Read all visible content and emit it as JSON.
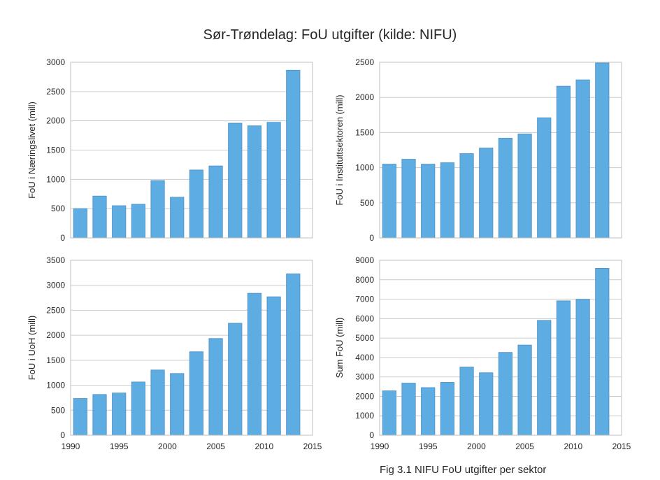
{
  "title": "Sør-Trøndelag: FoU utgifter (kilde: NIFU)",
  "caption": "Fig 3.1 NIFU FoU utgifter per sektor",
  "bar_color": "#5dade2",
  "chart_data": [
    {
      "type": "bar",
      "ylabel": "FoU i Næringslivet (mill)",
      "xlim": [
        1990,
        2015
      ],
      "ylim": [
        0,
        3000
      ],
      "yticks": [
        0,
        500,
        1000,
        1500,
        2000,
        2500,
        3000
      ],
      "xticks": [],
      "x": [
        1991,
        1993,
        1995,
        1997,
        1999,
        2001,
        2003,
        2005,
        2007,
        2009,
        2011,
        2013
      ],
      "values": [
        500,
        715,
        550,
        575,
        980,
        695,
        1160,
        1230,
        1960,
        1915,
        1975,
        2865
      ],
      "grid": true
    },
    {
      "type": "bar",
      "ylabel": "FoU i Instituttsektoren (mill)",
      "xlim": [
        1990,
        2015
      ],
      "ylim": [
        0,
        2500
      ],
      "yticks": [
        0,
        500,
        1000,
        1500,
        2000,
        2500
      ],
      "xticks": [],
      "x": [
        1991,
        1993,
        1995,
        1997,
        1999,
        2001,
        2003,
        2005,
        2007,
        2009,
        2011,
        2013
      ],
      "values": [
        1050,
        1120,
        1050,
        1070,
        1200,
        1280,
        1420,
        1480,
        1710,
        2160,
        2250,
        2490
      ],
      "grid": true
    },
    {
      "type": "bar",
      "ylabel": "FoU i UoH (mill)",
      "xlim": [
        1990,
        2015
      ],
      "ylim": [
        0,
        3500
      ],
      "yticks": [
        0,
        500,
        1000,
        1500,
        2000,
        2500,
        3000,
        3500
      ],
      "xticks": [
        1990,
        1995,
        2000,
        2005,
        2010,
        2015
      ],
      "x": [
        1991,
        1993,
        1995,
        1997,
        1999,
        2001,
        2003,
        2005,
        2007,
        2009,
        2011,
        2013
      ],
      "values": [
        735,
        815,
        845,
        1065,
        1305,
        1235,
        1670,
        1935,
        2240,
        2840,
        2770,
        3230
      ],
      "grid": true
    },
    {
      "type": "bar",
      "ylabel": "Sum FoU (mill)",
      "xlim": [
        1990,
        2015
      ],
      "ylim": [
        0,
        9000
      ],
      "yticks": [
        0,
        1000,
        2000,
        3000,
        4000,
        5000,
        6000,
        7000,
        8000,
        9000
      ],
      "xticks": [
        1990,
        1995,
        2000,
        2005,
        2010,
        2015
      ],
      "x": [
        1991,
        1993,
        1995,
        1997,
        1999,
        2001,
        2003,
        2005,
        2007,
        2009,
        2011,
        2013
      ],
      "values": [
        2285,
        2680,
        2450,
        2720,
        3510,
        3215,
        4260,
        4640,
        5910,
        6915,
        6995,
        8590
      ],
      "grid": true
    }
  ]
}
